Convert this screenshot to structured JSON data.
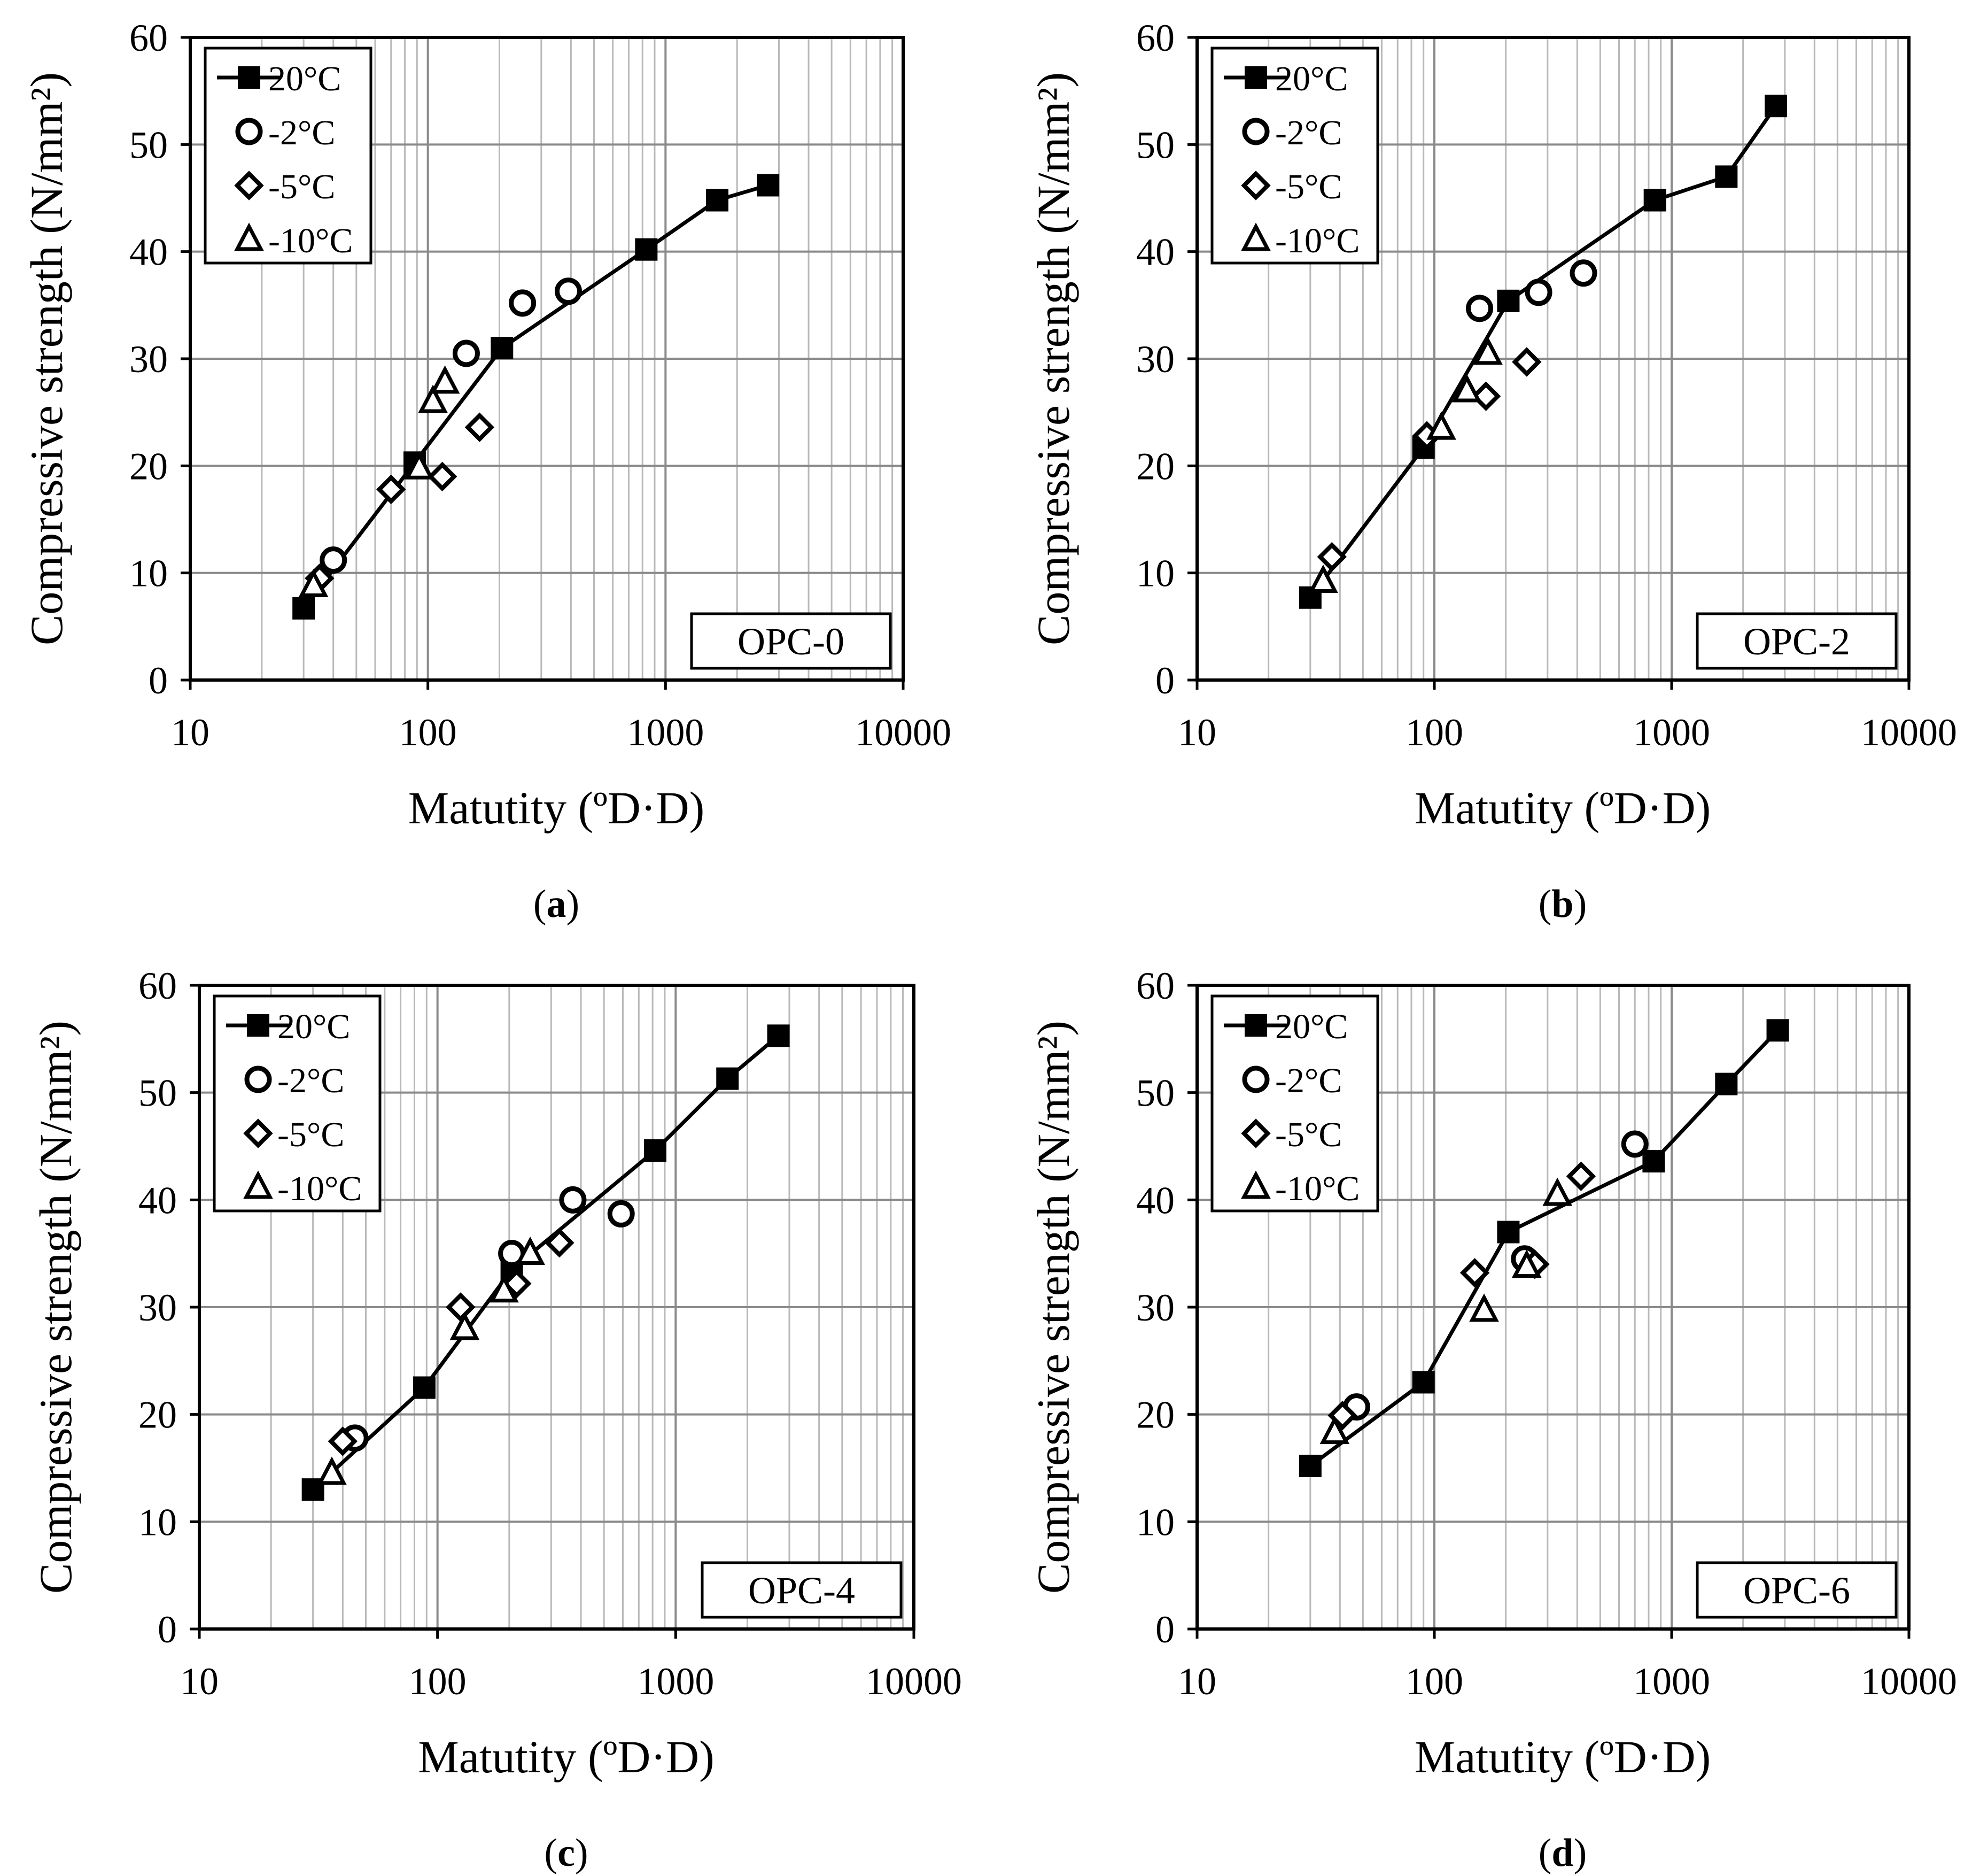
{
  "figure": {
    "panels_order": [
      "a",
      "b",
      "c",
      "d"
    ]
  },
  "chart_data": [
    {
      "panel": "a",
      "type": "scatter",
      "caption_open": "(",
      "caption_letter": "a",
      "caption_close": ")",
      "box_label": "OPC-0",
      "xlabel": "Matutity (ºD·D)",
      "ylabel": "Compressive strength (N/mm²)",
      "xscale": "log",
      "xlim": [
        10,
        10000
      ],
      "ylim": [
        0,
        60
      ],
      "xticks": [
        10,
        100,
        1000,
        10000
      ],
      "xtick_labels": [
        "10",
        "100",
        "1000",
        "10000"
      ],
      "yticks": [
        0,
        10,
        20,
        30,
        40,
        50,
        60
      ],
      "ytick_labels": [
        "0",
        "10",
        "20",
        "30",
        "40",
        "50",
        "60"
      ],
      "grid": true,
      "legend_position": "top-left",
      "series": [
        {
          "name": "20°C",
          "marker": "filled-square",
          "line": true,
          "x": [
            30,
            88,
            205,
            830,
            1650,
            2700
          ],
          "y": [
            6.7,
            20.3,
            31.0,
            40.2,
            44.8,
            46.2
          ]
        },
        {
          "name": "-2°C",
          "marker": "circle",
          "line": false,
          "x": [
            40,
            145,
            250,
            390
          ],
          "y": [
            11.2,
            30.5,
            35.2,
            36.3
          ]
        },
        {
          "name": "-5°C",
          "marker": "diamond",
          "line": false,
          "x": [
            35,
            70,
            115,
            165
          ],
          "y": [
            9.5,
            17.8,
            19.0,
            23.6
          ]
        },
        {
          "name": "-10°C",
          "marker": "triangle",
          "line": false,
          "x": [
            33,
            92,
            105,
            118
          ],
          "y": [
            8.8,
            19.8,
            26.0,
            27.8
          ]
        }
      ]
    },
    {
      "panel": "b",
      "type": "scatter",
      "caption_open": "(",
      "caption_letter": "b",
      "caption_close": ")",
      "box_label": "OPC-2",
      "xlabel": "Matutity (ºD·D)",
      "ylabel": "Compressive strength (N/mm²)",
      "xscale": "log",
      "xlim": [
        10,
        10000
      ],
      "ylim": [
        0,
        60
      ],
      "xticks": [
        10,
        100,
        1000,
        10000
      ],
      "xtick_labels": [
        "10",
        "100",
        "1000",
        "10000"
      ],
      "yticks": [
        0,
        10,
        20,
        30,
        40,
        50,
        60
      ],
      "ytick_labels": [
        "0",
        "10",
        "20",
        "30",
        "40",
        "50",
        "60"
      ],
      "grid": true,
      "legend_position": "top-left",
      "series": [
        {
          "name": "20°C",
          "marker": "filled-square",
          "line": true,
          "x": [
            30,
            90,
            205,
            850,
            1700,
            2750
          ],
          "y": [
            7.7,
            21.7,
            35.4,
            44.8,
            47.0,
            53.6
          ]
        },
        {
          "name": "-2°C",
          "marker": "circle",
          "line": false,
          "x": [
            155,
            275,
            425
          ],
          "y": [
            34.7,
            36.2,
            38.0
          ]
        },
        {
          "name": "-5°C",
          "marker": "diamond",
          "line": false,
          "x": [
            37,
            93,
            165,
            245
          ],
          "y": [
            11.5,
            22.8,
            26.5,
            29.7
          ]
        },
        {
          "name": "-10°C",
          "marker": "triangle",
          "line": false,
          "x": [
            34,
            107,
            137,
            168
          ],
          "y": [
            9.2,
            23.5,
            27.0,
            30.5
          ]
        }
      ]
    },
    {
      "panel": "c",
      "type": "scatter",
      "caption_open": "(",
      "caption_letter": "c",
      "caption_close": ")",
      "box_label": "OPC-4",
      "xlabel": "Matutity (ºD·D)",
      "ylabel": "Compressive strength (N/mm²)",
      "xscale": "log",
      "xlim": [
        10,
        10000
      ],
      "ylim": [
        0,
        60
      ],
      "xticks": [
        10,
        100,
        1000,
        10000
      ],
      "xtick_labels": [
        "10",
        "100",
        "1000",
        "10000"
      ],
      "yticks": [
        0,
        10,
        20,
        30,
        40,
        50,
        60
      ],
      "ytick_labels": [
        "0",
        "10",
        "20",
        "30",
        "40",
        "50",
        "60"
      ],
      "grid": true,
      "legend_position": "top-left",
      "series": [
        {
          "name": "20°C",
          "marker": "filled-square",
          "line": true,
          "x": [
            30,
            88,
            205,
            820,
            1650,
            2700
          ],
          "y": [
            13.0,
            22.5,
            33.5,
            44.6,
            51.3,
            55.3
          ]
        },
        {
          "name": "-2°C",
          "marker": "circle",
          "line": false,
          "x": [
            45,
            205,
            370,
            590
          ],
          "y": [
            17.8,
            35.0,
            40.0,
            38.7
          ]
        },
        {
          "name": "-5°C",
          "marker": "diamond",
          "line": false,
          "x": [
            40,
            125,
            215,
            325
          ],
          "y": [
            17.5,
            30.0,
            32.2,
            36.0
          ]
        },
        {
          "name": "-10°C",
          "marker": "triangle",
          "line": false,
          "x": [
            36,
            130,
            190,
            245
          ],
          "y": [
            14.5,
            28.0,
            31.5,
            35.0
          ]
        }
      ]
    },
    {
      "panel": "d",
      "type": "scatter",
      "caption_open": "(",
      "caption_letter": "d",
      "caption_close": ")",
      "box_label": "OPC-6",
      "xlabel": "Matutity (ºD·D)",
      "ylabel": "Compressive strength (N/mm²)",
      "xscale": "log",
      "xlim": [
        10,
        10000
      ],
      "ylim": [
        0,
        60
      ],
      "xticks": [
        10,
        100,
        1000,
        10000
      ],
      "xtick_labels": [
        "10",
        "100",
        "1000",
        "10000"
      ],
      "yticks": [
        0,
        10,
        20,
        30,
        40,
        50,
        60
      ],
      "ytick_labels": [
        "0",
        "10",
        "20",
        "30",
        "40",
        "50",
        "60"
      ],
      "grid": true,
      "legend_position": "top-left",
      "series": [
        {
          "name": "20°C",
          "marker": "filled-square",
          "line": true,
          "x": [
            30,
            90,
            205,
            840,
            1700,
            2800
          ],
          "y": [
            15.2,
            23.0,
            37.0,
            43.6,
            50.8,
            55.8
          ]
        },
        {
          "name": "-2°C",
          "marker": "circle",
          "line": false,
          "x": [
            47,
            240,
            700
          ],
          "y": [
            20.7,
            34.5,
            45.2
          ]
        },
        {
          "name": "-5°C",
          "marker": "diamond",
          "line": false,
          "x": [
            41,
            148,
            265,
            415
          ],
          "y": [
            19.9,
            33.2,
            34.0,
            42.2
          ]
        },
        {
          "name": "-10°C",
          "marker": "triangle",
          "line": false,
          "x": [
            38,
            162,
            245,
            330
          ],
          "y": [
            18.3,
            29.7,
            33.8,
            40.5
          ]
        }
      ]
    }
  ]
}
